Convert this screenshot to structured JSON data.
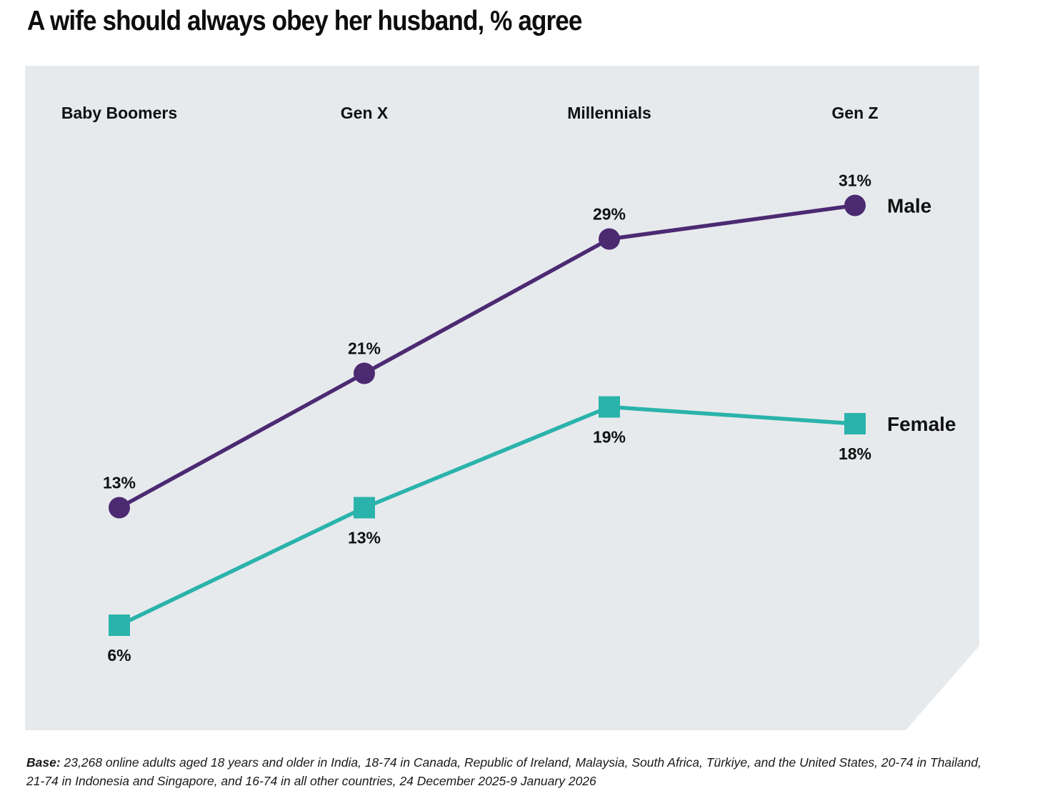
{
  "title": "A wife should always obey her husband, % agree",
  "footer": {
    "label": "Base:",
    "text": " 23,268 online adults aged 18 years and older in India, 18-74 in Canada, Republic of Ireland, Malaysia, South Africa, Türkiye, and the United States, 20-74 in Thailand, 21-74 in Indonesia and Singapore, and 16-74 in all other countries, 24 December 2025-9 January 2026"
  },
  "colors": {
    "male": "#4C2A72",
    "female": "#2AB3AB",
    "panel_background": "#E7EAED",
    "text": "#111111"
  },
  "chart_data": {
    "type": "line",
    "title": "A wife should always obey her husband, % agree",
    "categories": [
      "Baby Boomers",
      "Gen X",
      "Millennials",
      "Gen Z"
    ],
    "series": [
      {
        "name": "Male",
        "values": [
          13,
          21,
          29,
          31
        ],
        "color": "#4C2A72",
        "marker": "circle",
        "label_position": "above"
      },
      {
        "name": "Female",
        "values": [
          6,
          13,
          19,
          18
        ],
        "color": "#2AB3AB",
        "marker": "square",
        "label_position": "below"
      }
    ],
    "value_suffix": "%",
    "ylim": [
      0,
      40
    ],
    "xlabel": "",
    "ylabel": "",
    "grid": false,
    "legend_position": "right-of-last-point"
  }
}
